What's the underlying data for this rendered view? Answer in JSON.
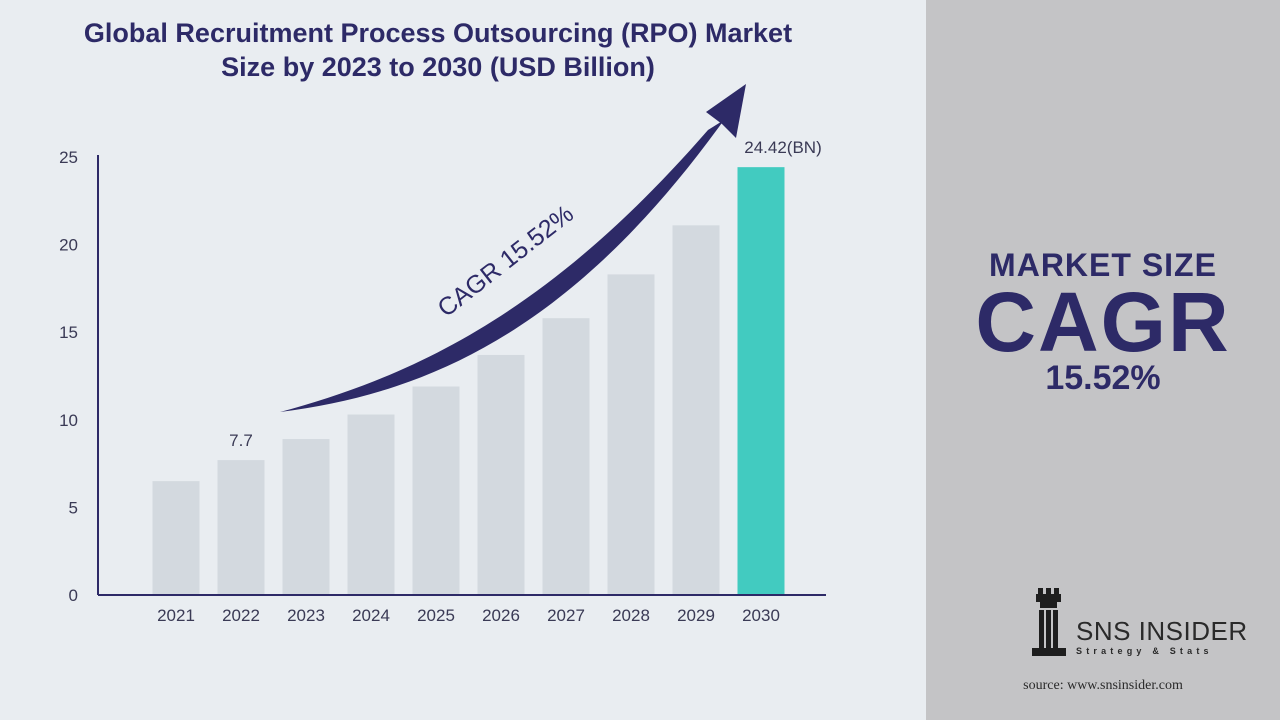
{
  "title": {
    "line1": "Global Recruitment Process Outsourcing (RPO) Market",
    "line2": "Size by 2023 to 2030 (USD Billion)"
  },
  "chart_data": {
    "type": "bar",
    "categories": [
      "2021",
      "2022",
      "2023",
      "2024",
      "2025",
      "2026",
      "2027",
      "2028",
      "2029",
      "2030"
    ],
    "values": [
      6.5,
      7.7,
      8.9,
      10.3,
      11.9,
      13.7,
      15.8,
      18.3,
      21.1,
      24.42
    ],
    "ylim": [
      0,
      25
    ],
    "yticks": [
      0,
      5,
      10,
      15,
      20,
      25
    ],
    "data_labels": [
      {
        "index": 1,
        "text": "7.7"
      },
      {
        "index": 9,
        "text": "24.42(BN)"
      }
    ],
    "annotation": "CAGR 15.52%",
    "bar_color": "#d3d9df",
    "highlight_color": "#42cbc0",
    "highlight_index": 9,
    "arrow_color": "#2d2a67",
    "grid": false
  },
  "side_panel": {
    "market_size": "MARKET SIZE",
    "cagr": "CAGR",
    "cagr_value": "15.52%"
  },
  "logo": {
    "name": "SNS INSIDER",
    "tagline": "Strategy & Stats",
    "icon": "chess-rook-icon"
  },
  "source": "source: www.snsinsider.com"
}
